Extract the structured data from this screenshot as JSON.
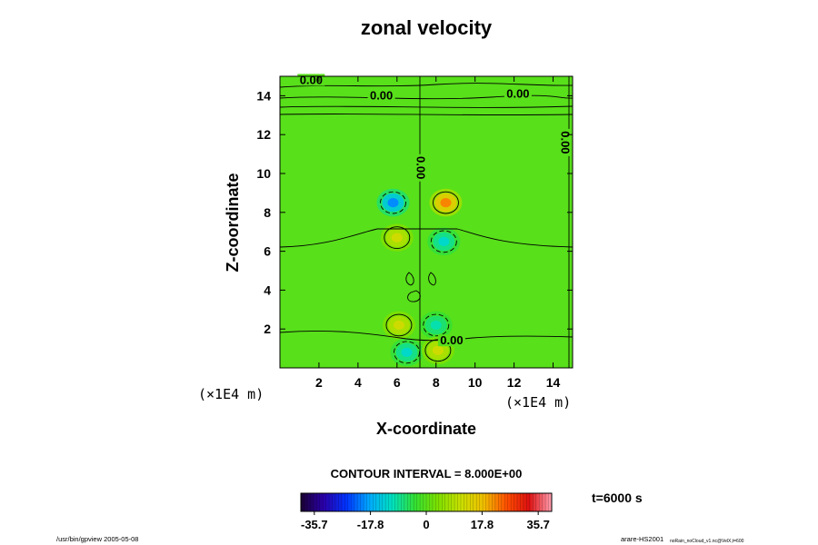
{
  "chart_data": {
    "type": "heatmap",
    "title": "zonal velocity",
    "xlabel": "X-coordinate",
    "ylabel": "Z-coordinate",
    "xlim": [
      0,
      15
    ],
    "ylim": [
      0,
      15
    ],
    "x_ticks": [
      2,
      4,
      6,
      8,
      10,
      12,
      14
    ],
    "y_ticks": [
      2,
      4,
      6,
      8,
      10,
      12,
      14
    ],
    "x_unit": "(×1E4 m)",
    "y_unit": "(×1E4 m)",
    "contour_interval_text": "CONTOUR INTERVAL = 8.000E+00",
    "contour_labels": [
      {
        "text": "0.00",
        "x": 1.6,
        "z": 14.7
      },
      {
        "text": "0.00",
        "x": 5.2,
        "z": 13.9
      },
      {
        "text": "0.00",
        "x": 12.2,
        "z": 14.0
      },
      {
        "text": "0.00",
        "x": 14.6,
        "z": 11.5
      },
      {
        "text": "0.00",
        "x": 7.2,
        "z": 10.2
      },
      {
        "text": "0.00",
        "x": 8.8,
        "z": 1.3
      }
    ],
    "features": [
      {
        "sign": "negative",
        "x": 5.8,
        "z": 8.5,
        "peak": -20
      },
      {
        "sign": "positive",
        "x": 8.5,
        "z": 8.5,
        "peak": 22
      },
      {
        "sign": "positive",
        "x": 6.0,
        "z": 6.7,
        "peak": 12
      },
      {
        "sign": "negative",
        "x": 8.4,
        "z": 6.5,
        "peak": -12
      },
      {
        "sign": "positive",
        "x": 6.1,
        "z": 2.2,
        "peak": 12
      },
      {
        "sign": "negative",
        "x": 8.0,
        "z": 2.2,
        "peak": -10
      },
      {
        "sign": "negative",
        "x": 6.5,
        "z": 0.8,
        "peak": -12
      },
      {
        "sign": "positive",
        "x": 8.1,
        "z": 0.9,
        "peak": 12
      }
    ],
    "colorbar": {
      "min": -40,
      "max": 40,
      "tick_labels": [
        "-35.7",
        "-17.8",
        "0",
        "17.8",
        "35.7"
      ],
      "tick_values": [
        -35.7,
        -17.8,
        0,
        17.8,
        35.7
      ],
      "stops": [
        "#1a0033",
        "#2a00aa",
        "#0033ff",
        "#00aaff",
        "#00e0c0",
        "#33e033",
        "#7de000",
        "#c8e000",
        "#f0c000",
        "#ff5000",
        "#dd1010",
        "#ff9fb0"
      ]
    },
    "time_label": "t=6000 s",
    "footer_left": "/usr/bin/gpview 2005-05-08",
    "footer_right": "arare-HS2001",
    "footer_right_sub": "noRain_noCloud_v1.nc@VelX,t=600"
  }
}
